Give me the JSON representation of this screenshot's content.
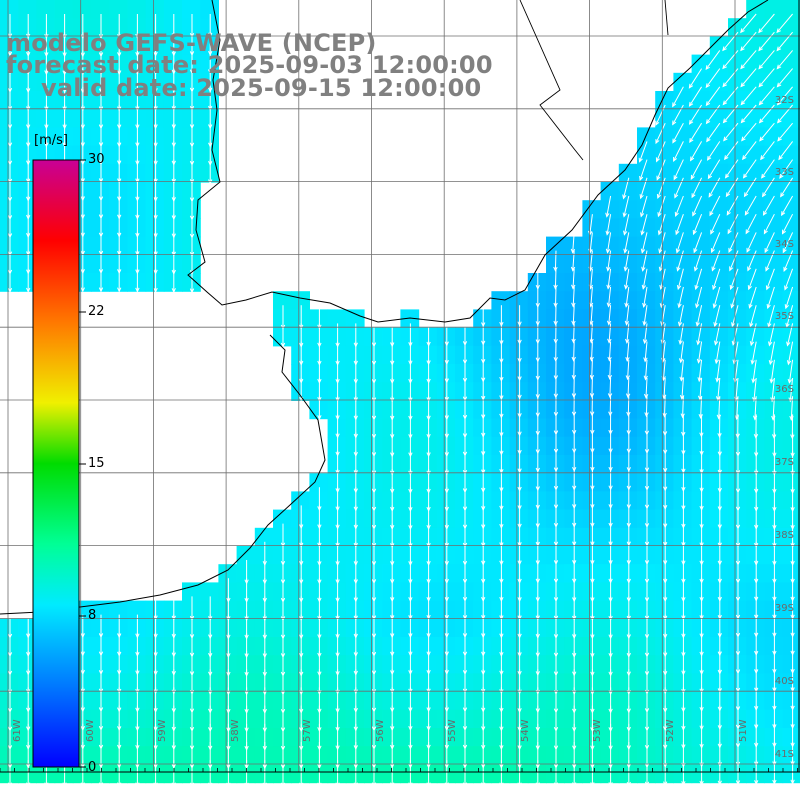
{
  "title": {
    "line1": "modelo GEFS-WAVE (NCEP)",
    "line2": "forecast date: 2025-09-03 12:00:00",
    "line3": "valid date: 2025-09-15 12:00:00"
  },
  "colorbar": {
    "unit": "[m/s]",
    "ticks": [
      "30",
      "22",
      "15",
      "8",
      "0"
    ]
  },
  "lat_labels": [
    "32S",
    "33S",
    "34S",
    "35S",
    "36S",
    "37S",
    "38S",
    "39S",
    "40S",
    "41S"
  ],
  "lon_labels": [
    "61W",
    "60W",
    "59W",
    "58W",
    "57W",
    "56W",
    "55W",
    "54W",
    "53W",
    "52W",
    "51W"
  ],
  "colors": {
    "land": "#ffffff",
    "grid": "#6e6e6e",
    "coast": "#000000",
    "arrow": "#ffffff",
    "ocean_low": "#1a78f0",
    "ocean_mid": "#00e6f0",
    "ocean_high": "#20ff60"
  },
  "chart_data": {
    "type": "heatmap",
    "title": "modelo GEFS-WAVE (NCEP)",
    "variable": "wind speed",
    "units": "m/s",
    "color_scale": {
      "min": 0,
      "max": 30,
      "ticks": [
        0,
        8,
        15,
        22,
        30
      ]
    },
    "typical_ocean_speed_range": [
      6,
      11
    ],
    "wind_direction": "from north (arrows pointing south); northeasterly near the northeast coast"
  }
}
